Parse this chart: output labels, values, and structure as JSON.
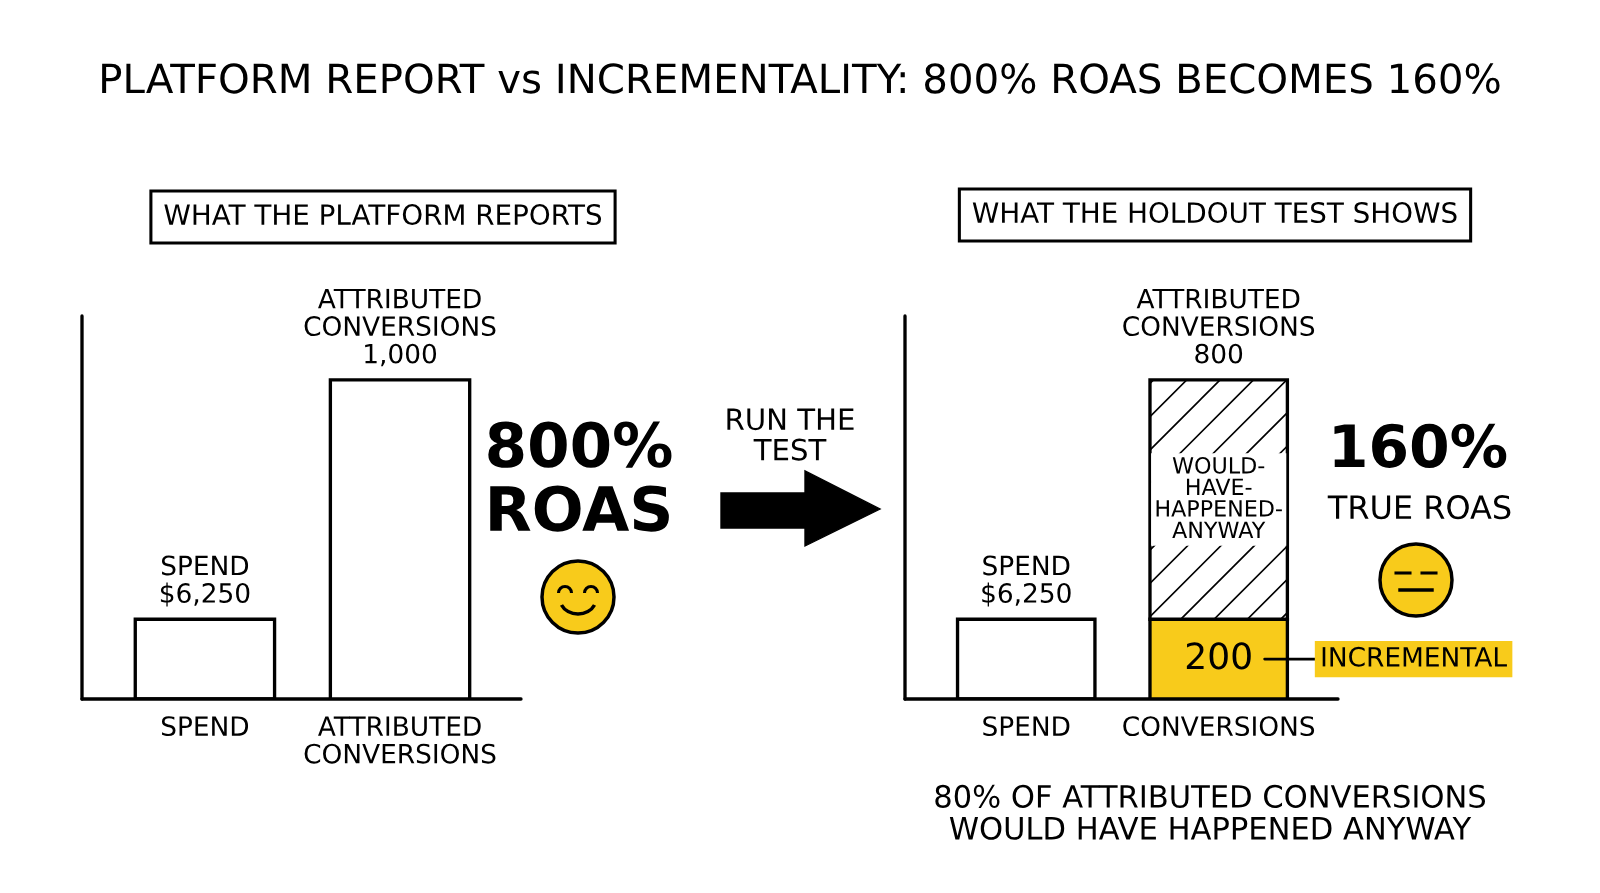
{
  "chart_data": [
    {
      "type": "bar",
      "title": "PLATFORM REPORT vs INCREMENTALITY: 800% ROAS BECOMES 160%",
      "subtitle": "WHAT THE PLATFORM REPORTS",
      "categories": [
        "SPEND",
        "ATTRIBUTED\nCONVERSIONS"
      ],
      "series": [
        {
          "color": "#ffffff",
          "values": [
            6250,
            null
          ],
          "value_labels": [
            "SPEND\n$6,250",
            null
          ]
        },
        {
          "color": "#ffffff",
          "axis": "y2",
          "values": [
            null,
            1000
          ],
          "value_labels": [
            null,
            "ATTRIBUTED\nCONVERSIONS\n1,000"
          ]
        }
      ],
      "ylim": [
        0,
        30000
      ],
      "y2lim": [
        0,
        1200
      ],
      "tick_labels": "x",
      "annotations": [
        "800%\nROAS"
      ]
    },
    {
      "type": "bar",
      "subtitle": "WHAT THE HOLDOUT TEST SHOWS",
      "categories": [
        "SPEND",
        "CONVERSIONS"
      ],
      "stacked": true,
      "series": [
        {
          "color": "#ffffff",
          "values": [
            6250,
            null
          ],
          "value_labels": [
            "SPEND\n$6,250",
            null
          ]
        },
        {
          "name": "INCREMENTAL",
          "color": "#f8cb1b",
          "axis": "y2",
          "values": [
            null,
            200
          ],
          "value_labels": [
            null,
            "200"
          ]
        },
        {
          "name": "WOULD-\nHAVE-\nHAPPENED-\nANYWAY",
          "color": "#000000",
          "axis": "y2",
          "values": [
            null,
            600
          ]
        }
      ],
      "ylim": [
        0,
        30000
      ],
      "y2lim": [
        0,
        960
      ],
      "tick_labels": "x",
      "totals": [
        null,
        "ATTRIBUTED\nCONVERSIONS\n800"
      ],
      "annotations": [
        "RUN THE\nTEST",
        "160%",
        "TRUE ROAS",
        "80% OF ATTRIBUTED CONVERSIONS\nWOULD HAVE HAPPENED ANYWAY"
      ]
    }
  ]
}
